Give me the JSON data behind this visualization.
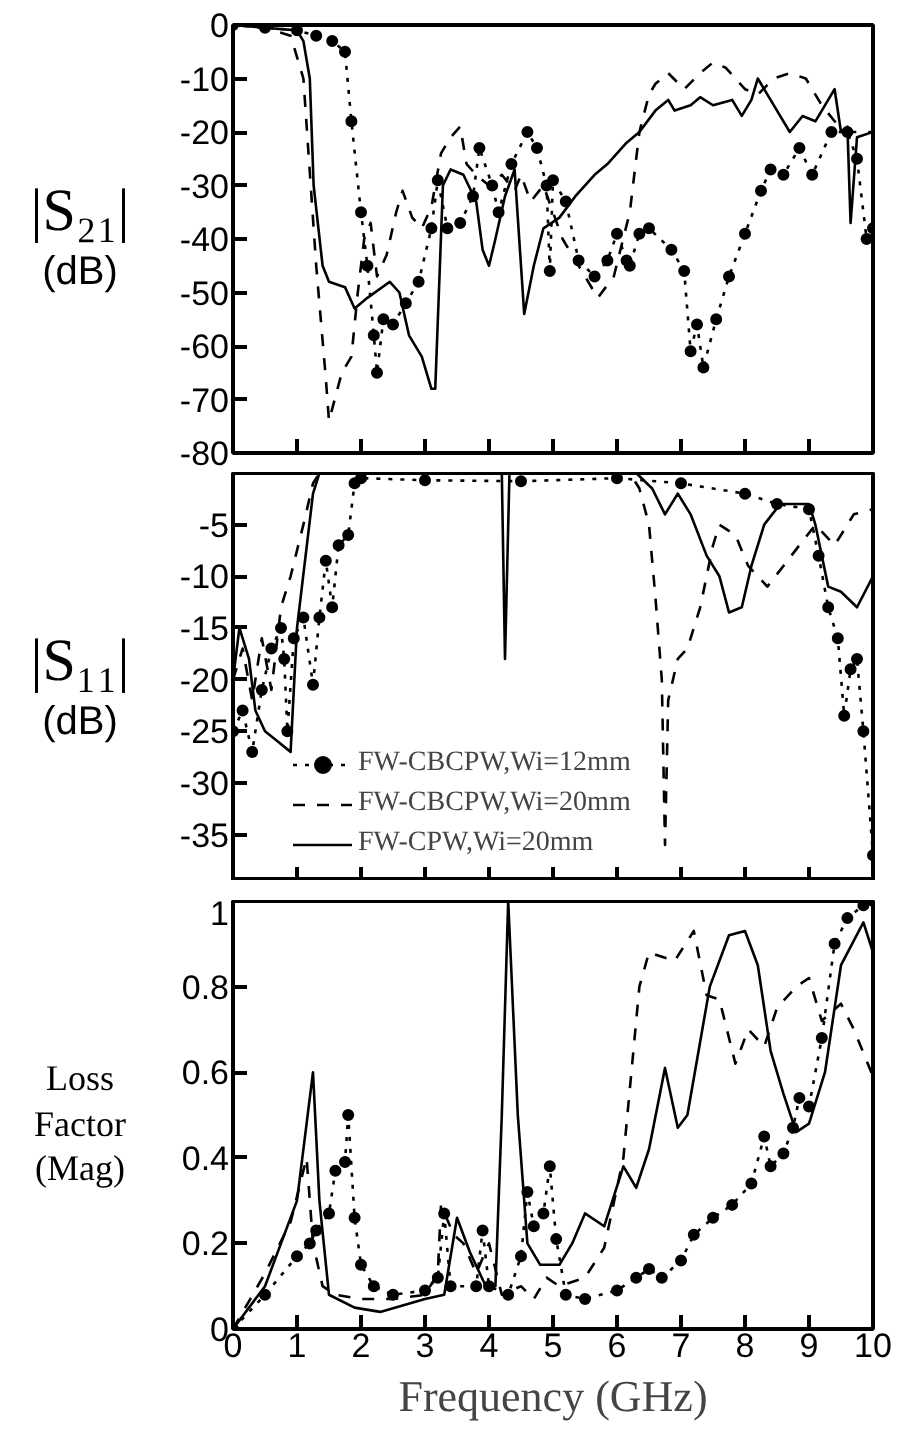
{
  "chart_data": [
    {
      "type": "line",
      "ylabel": "|S₂₁|\n(dB)",
      "xlim": [
        0,
        10
      ],
      "xticks": [
        0,
        1,
        2,
        3,
        4,
        5,
        6,
        7,
        8,
        9,
        10
      ],
      "ylim": [
        -80,
        0
      ],
      "yticks": [
        0,
        -10,
        -20,
        -30,
        -40,
        -50,
        -60,
        -70,
        -80
      ],
      "tick_labels": "y",
      "grid": false,
      "series": [
        {
          "color": "#000000",
          "line_style": "dotted",
          "marker": "circle",
          "x": [
            0,
            0.5,
            1.0,
            1.3,
            1.55,
            1.75,
            1.85,
            2.0,
            2.1,
            2.2,
            2.25,
            2.35,
            2.5,
            2.7,
            2.9,
            3.1,
            3.2,
            3.35,
            3.55,
            3.75,
            3.85,
            4.05,
            4.15,
            4.35,
            4.6,
            4.75,
            4.9,
            4.95,
            5.0,
            5.2,
            5.4,
            5.65,
            5.85,
            6.0,
            6.15,
            6.2,
            6.35,
            6.5,
            6.85,
            7.05,
            7.15,
            7.25,
            7.35,
            7.55,
            7.75,
            8.0,
            8.25,
            8.4,
            8.6,
            8.85,
            9.05,
            9.35,
            9.6,
            9.75,
            9.9,
            10
          ],
          "values": [
            0,
            -0.5,
            -1,
            -2,
            -3,
            -5,
            -18,
            -35,
            -45,
            -58,
            -65,
            -55,
            -56,
            -52,
            -48,
            -38,
            -29,
            -38,
            -37,
            -32,
            -23,
            -30,
            -35,
            -26,
            -20,
            -23,
            -30,
            -46,
            -29,
            -33,
            -44,
            -47,
            -44,
            -39,
            -44,
            -45,
            -39,
            -38,
            -42,
            -46,
            -61,
            -56,
            -64,
            -55,
            -47,
            -39,
            -31,
            -27,
            -28,
            -23,
            -28,
            -20,
            -20,
            -25,
            -40,
            -38
          ]
        },
        {
          "color": "#000000",
          "line_style": "dashed",
          "marker": "none",
          "x": [
            0,
            0.5,
            0.9,
            1.1,
            1.3,
            1.45,
            1.5,
            1.7,
            1.85,
            1.95,
            2.05,
            2.15,
            2.25,
            2.4,
            2.55,
            2.65,
            2.8,
            2.95,
            3.1,
            3.25,
            3.4,
            3.55,
            3.65,
            3.8,
            4.0,
            4.2,
            4.4,
            4.5,
            4.65,
            4.85,
            5.15,
            5.45,
            5.7,
            5.95,
            6.2,
            6.35,
            6.5,
            6.6,
            6.8,
            7.05,
            7.3,
            7.5,
            7.7,
            8.0,
            8.2,
            8.45,
            8.7,
            8.95,
            9.2,
            9.4,
            9.6,
            10
          ],
          "values": [
            0,
            -0.5,
            -2,
            -10,
            -45,
            -66,
            -74,
            -65,
            -62,
            -50,
            -40,
            -37,
            -47,
            -43,
            -35,
            -31,
            -36,
            -38,
            -34,
            -24,
            -21,
            -19,
            -26,
            -28,
            -30,
            -28,
            -31,
            -28,
            -33,
            -30,
            -40,
            -46,
            -51,
            -47,
            -35,
            -20,
            -13,
            -11,
            -9,
            -12,
            -9,
            -7,
            -8,
            -12,
            -13,
            -10,
            -9,
            -10,
            -15,
            -18,
            -20,
            -20
          ]
        },
        {
          "color": "#000000",
          "line_style": "solid",
          "marker": "none",
          "x": [
            0,
            0.5,
            1.0,
            1.1,
            1.2,
            1.26,
            1.4,
            1.5,
            1.75,
            1.9,
            2.1,
            2.45,
            2.6,
            2.75,
            2.95,
            3.1,
            3.16,
            3.28,
            3.4,
            3.6,
            3.8,
            3.9,
            4.0,
            4.1,
            4.25,
            4.4,
            4.55,
            4.7,
            4.85,
            5.1,
            5.35,
            5.65,
            5.85,
            6.15,
            6.35,
            6.6,
            6.8,
            6.9,
            7.15,
            7.3,
            7.5,
            7.8,
            7.95,
            8.1,
            8.2,
            8.5,
            8.7,
            8.9,
            9.1,
            9.4,
            9.5,
            9.6,
            9.65,
            9.75,
            10
          ],
          "values": [
            0,
            -0.5,
            -1,
            -3,
            -10,
            -30,
            -45,
            -48,
            -49,
            -53,
            -51,
            -48,
            -50,
            -58,
            -62,
            -68,
            -68,
            -30,
            -27,
            -28,
            -33,
            -42,
            -45,
            -40,
            -32,
            -27,
            -54,
            -45,
            -38,
            -36,
            -32,
            -28,
            -26,
            -22,
            -20,
            -16,
            -14,
            -16,
            -15,
            -13.5,
            -15,
            -14,
            -17,
            -14,
            -10,
            -16,
            -20,
            -17,
            -18,
            -12,
            -20,
            -19,
            -37,
            -21,
            -20
          ]
        }
      ]
    },
    {
      "type": "line",
      "ylabel": "|S₁₁|\n(dB)",
      "xlim": [
        0,
        10
      ],
      "xticks": [
        0,
        1,
        2,
        3,
        4,
        5,
        6,
        7,
        8,
        9,
        10
      ],
      "ylim": [
        -39.5,
        0
      ],
      "yticks": [
        {
          "value": 0,
          "label": null
        },
        -5,
        -10,
        -15,
        -20,
        -25,
        -30,
        -35
      ],
      "tick_labels": "y",
      "grid": false,
      "legend": "left",
      "series": [
        {
          "name": "FW-CBCPW,Wi=12mm",
          "color": "#000000",
          "line_style": "dotted",
          "marker": "circle",
          "x": [
            0,
            0.15,
            0.3,
            0.45,
            0.6,
            0.75,
            0.8,
            0.85,
            0.95,
            1.1,
            1.25,
            1.35,
            1.45,
            1.55,
            1.65,
            1.8,
            1.9,
            2.0,
            3.0,
            4.5,
            6.0,
            7.0,
            8.0,
            8.5,
            9.0,
            9.15,
            9.3,
            9.45,
            9.55,
            9.65,
            9.75,
            9.85,
            10
          ],
          "values": [
            -25,
            -23,
            -27,
            -21,
            -17,
            -15,
            -18,
            -25,
            -16,
            -14,
            -20.5,
            -14,
            -8.5,
            -13,
            -7,
            -6,
            -1,
            -0.5,
            -0.7,
            -0.8,
            -0.5,
            -1,
            -2,
            -3,
            -3.5,
            -8,
            -13,
            -16,
            -23.5,
            -19,
            -18,
            -25,
            -37
          ]
        },
        {
          "name": "FW-CBCPW,Wi=20mm",
          "color": "#000000",
          "line_style": "dashed",
          "marker": "none",
          "x": [
            0,
            0.15,
            0.3,
            0.45,
            0.6,
            0.75,
            0.9,
            1.1,
            1.25,
            1.35,
            6.2,
            6.35,
            6.5,
            6.6,
            6.7,
            6.75,
            6.8,
            6.95,
            7.1,
            7.3,
            7.5,
            7.6,
            7.85,
            8.05,
            8.35,
            8.6,
            8.85,
            9.1,
            9.4,
            9.7,
            10
          ],
          "values": [
            -20,
            -17,
            -22,
            -16,
            -21,
            -13,
            -10,
            -5,
            -1,
            0,
            0,
            -1.5,
            -5,
            -12,
            -20,
            -36,
            -22,
            -18,
            -17,
            -13,
            -7,
            -5,
            -6,
            -9,
            -11,
            -9,
            -7,
            -5,
            -7,
            -4,
            -3.5
          ]
        },
        {
          "name": "FW-CPW,Wi=20mm",
          "color": "#000000",
          "line_style": "solid",
          "marker": "none",
          "x": [
            0,
            0.1,
            0.25,
            0.35,
            0.5,
            0.7,
            0.9,
            1.0,
            1.25,
            1.35,
            4.2,
            4.25,
            4.32,
            6.3,
            6.55,
            6.75,
            6.95,
            7.15,
            7.4,
            7.6,
            7.75,
            7.95,
            8.1,
            8.3,
            8.55,
            9.0,
            9.1,
            9.3,
            9.5,
            9.75,
            10
          ],
          "values": [
            -20,
            -15,
            -18,
            -23,
            -25,
            -26,
            -27,
            -15,
            -2,
            0,
            0,
            -18,
            0,
            0,
            -1.5,
            -4,
            -2,
            -4,
            -8,
            -10,
            -13.5,
            -13,
            -9,
            -5,
            -3,
            -3,
            -5,
            -11,
            -11.5,
            -13,
            -10
          ]
        }
      ]
    },
    {
      "type": "line",
      "ylabel": "Loss\nFactor\n(Mag)",
      "xlabel": "Frequency (GHz)",
      "xlim": [
        0,
        10
      ],
      "xticks": [
        0,
        1,
        2,
        3,
        4,
        5,
        6,
        7,
        8,
        9,
        10
      ],
      "ylim": [
        0,
        1
      ],
      "yticks": [
        0,
        0.2,
        0.4,
        0.6,
        0.8,
        1
      ],
      "grid": false,
      "series": [
        {
          "color": "#000000",
          "line_style": "dotted",
          "marker": "circle",
          "x": [
            0,
            0.5,
            1.0,
            1.2,
            1.3,
            1.5,
            1.6,
            1.75,
            1.8,
            1.9,
            2.0,
            2.2,
            2.5,
            3.0,
            3.2,
            3.3,
            3.4,
            3.8,
            3.9,
            4.0,
            4.3,
            4.5,
            4.6,
            4.7,
            4.85,
            4.95,
            5.05,
            5.2,
            5.5,
            6.0,
            6.3,
            6.5,
            6.7,
            7.0,
            7.2,
            7.5,
            7.8,
            8.1,
            8.3,
            8.4,
            8.6,
            8.75,
            8.85,
            9.0,
            9.2,
            9.4,
            9.6,
            9.85,
            10
          ],
          "values": [
            0,
            0.08,
            0.17,
            0.2,
            0.23,
            0.27,
            0.37,
            0.39,
            0.5,
            0.26,
            0.15,
            0.1,
            0.08,
            0.09,
            0.12,
            0.27,
            0.1,
            0.1,
            0.23,
            0.1,
            0.08,
            0.17,
            0.32,
            0.24,
            0.27,
            0.38,
            0.21,
            0.08,
            0.07,
            0.09,
            0.12,
            0.14,
            0.12,
            0.16,
            0.22,
            0.26,
            0.29,
            0.34,
            0.45,
            0.38,
            0.41,
            0.47,
            0.54,
            0.52,
            0.68,
            0.9,
            0.96,
            0.99,
            1.0
          ]
        },
        {
          "color": "#000000",
          "line_style": "dashed",
          "marker": "none",
          "x": [
            0,
            0.5,
            0.9,
            1.15,
            1.25,
            1.4,
            1.6,
            2.0,
            2.5,
            3.0,
            3.2,
            3.25,
            3.45,
            3.6,
            3.8,
            4.0,
            4.2,
            4.5,
            4.7,
            4.9,
            5.1,
            5.5,
            5.8,
            6.1,
            6.35,
            6.5,
            6.9,
            7.2,
            7.4,
            7.6,
            7.85,
            8.05,
            8.3,
            8.5,
            8.8,
            9.0,
            9.2,
            9.5,
            9.7,
            10
          ],
          "values": [
            0,
            0.13,
            0.25,
            0.4,
            0.2,
            0.1,
            0.08,
            0.07,
            0.07,
            0.08,
            0.13,
            0.29,
            0.22,
            0.2,
            0.13,
            0.2,
            0.08,
            0.1,
            0.07,
            0.12,
            0.1,
            0.12,
            0.19,
            0.4,
            0.8,
            0.88,
            0.86,
            0.93,
            0.78,
            0.77,
            0.62,
            0.7,
            0.66,
            0.75,
            0.8,
            0.82,
            0.72,
            0.76,
            0.7,
            0.59
          ]
        },
        {
          "color": "#000000",
          "line_style": "solid",
          "marker": "none",
          "x": [
            0,
            0.5,
            1.0,
            1.25,
            1.35,
            1.5,
            1.9,
            2.3,
            3.0,
            3.3,
            3.5,
            3.7,
            3.95,
            4.1,
            4.2,
            4.3,
            4.45,
            4.6,
            4.8,
            5.1,
            5.3,
            5.5,
            5.8,
            6.1,
            6.3,
            6.5,
            6.75,
            6.95,
            7.1,
            7.45,
            7.75,
            8.0,
            8.2,
            8.4,
            8.6,
            8.8,
            9.0,
            9.25,
            9.5,
            9.85,
            10
          ],
          "values": [
            0,
            0.1,
            0.3,
            0.6,
            0.3,
            0.08,
            0.05,
            0.04,
            0.07,
            0.08,
            0.26,
            0.18,
            0.1,
            0.1,
            0.5,
            1.0,
            0.5,
            0.2,
            0.15,
            0.15,
            0.2,
            0.27,
            0.24,
            0.38,
            0.33,
            0.42,
            0.61,
            0.47,
            0.5,
            0.8,
            0.92,
            0.93,
            0.85,
            0.65,
            0.55,
            0.46,
            0.48,
            0.6,
            0.85,
            0.95,
            0.88
          ]
        }
      ]
    }
  ]
}
